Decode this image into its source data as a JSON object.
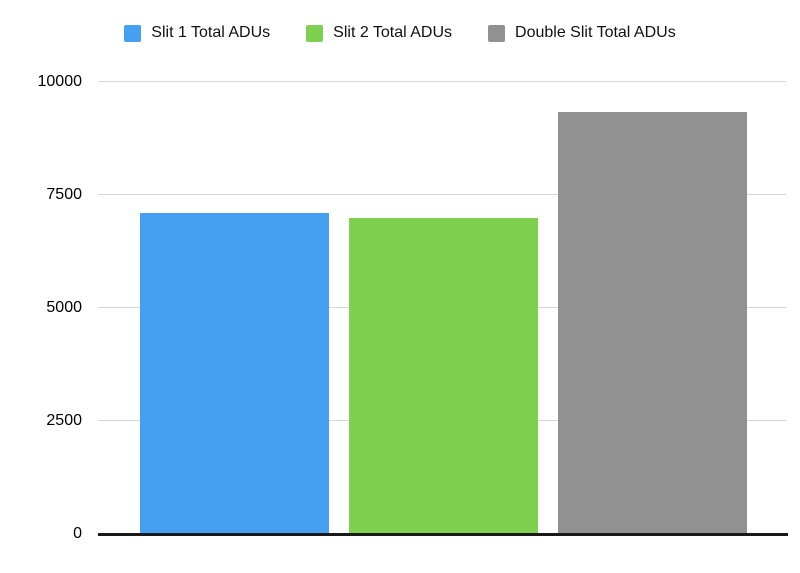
{
  "chart_data": {
    "type": "bar",
    "title": "",
    "xlabel": "",
    "ylabel": "",
    "categories": [
      "Slit 1 Total ADUs",
      "Slit 2 Total ADUs",
      "Double Slit Total ADUs"
    ],
    "series": [
      {
        "name": "Slit 1 Total ADUs",
        "value": 7100,
        "color": "#45a0f2"
      },
      {
        "name": "Slit 2 Total ADUs",
        "value": 7000,
        "color": "#7ed04e"
      },
      {
        "name": "Double Slit Total ADUs",
        "value": 9330,
        "color": "#919191"
      }
    ],
    "ylim": [
      0,
      10000
    ],
    "yticks": [
      "0",
      "2500",
      "5000",
      "7500",
      "10000"
    ],
    "grid": true,
    "legend_position": "top"
  },
  "colors": {
    "background": "#ffffff",
    "gridline": "#d7d7d7",
    "axis_line": "#1a1a1a",
    "text": "#000000"
  }
}
